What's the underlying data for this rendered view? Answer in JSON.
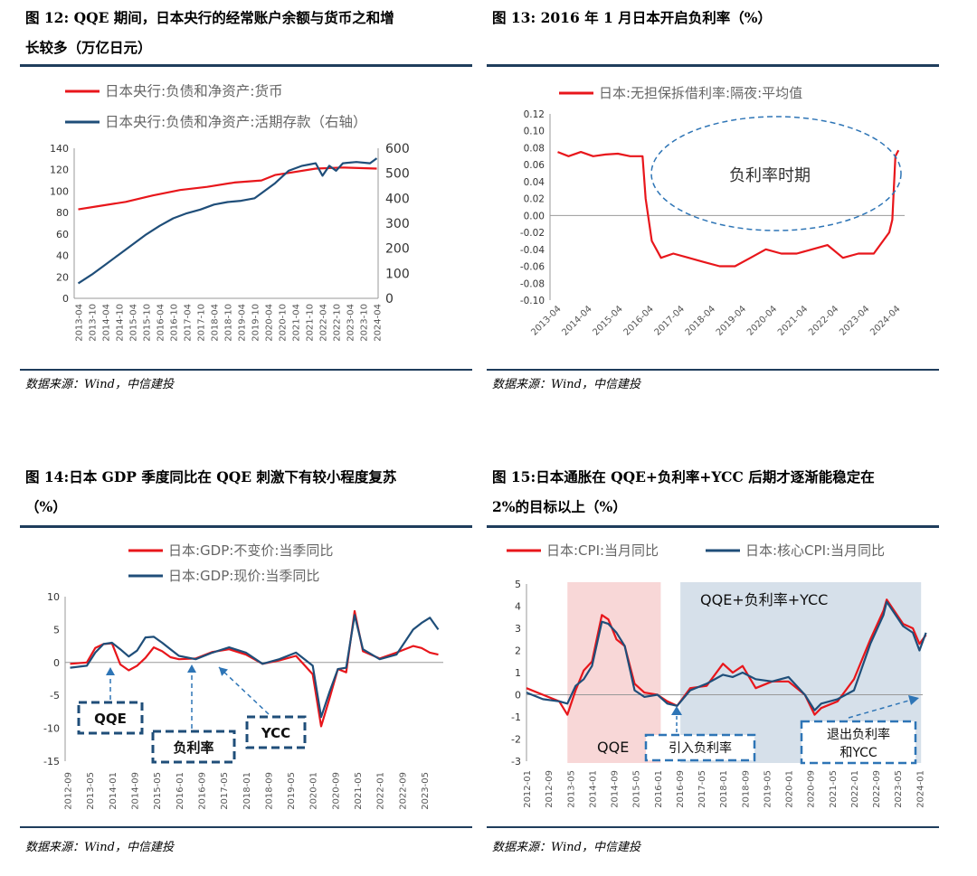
{
  "fig12": {
    "title_line1": "图 12: QQE 期间，日本央行的经常账户余额与货币之和增",
    "title_line2": "长较多（万亿日元）",
    "source": "数据来源：Wind，中信建投",
    "chart_data": {
      "type": "line",
      "legend": [
        "日本央行:负债和净资产:货币",
        "日本央行:负债和净资产:活期存款（右轴）"
      ],
      "x_ticks": [
        "2013-04",
        "2013-10",
        "2014-04",
        "2014-10",
        "2015-04",
        "2015-10",
        "2016-04",
        "2016-10",
        "2017-04",
        "2017-10",
        "2018-04",
        "2018-10",
        "2019-04",
        "2019-10",
        "2020-04",
        "2020-10",
        "2021-04",
        "2021-10",
        "2022-04",
        "2022-10",
        "2023-04",
        "2023-10",
        "2024-04"
      ],
      "y_left_ticks": [
        "0",
        "20",
        "40",
        "60",
        "80",
        "100",
        "120",
        "140"
      ],
      "y_right_ticks": [
        "0",
        "100",
        "200",
        "300",
        "400",
        "500",
        "600"
      ],
      "ylim_left": [
        0,
        140
      ],
      "ylim_right": [
        0,
        600
      ],
      "series": [
        {
          "name": "日本央行:负债和净资产:货币",
          "axis": "left",
          "color": "#e8161b",
          "x": [
            2013.25,
            2014.0,
            2015.0,
            2016.0,
            2017.0,
            2018.0,
            2019.0,
            2020.0,
            2020.5,
            2021.0,
            2022.0,
            2023.0,
            2024.25
          ],
          "y": [
            83,
            86,
            90,
            96,
            101,
            104,
            108,
            110,
            115,
            117,
            121,
            122,
            121
          ]
        },
        {
          "name": "日本央行:负债和净资产:活期存款（右轴）",
          "axis": "right",
          "color": "#1f4e79",
          "x": [
            2013.25,
            2013.75,
            2014.25,
            2014.75,
            2015.25,
            2015.75,
            2016.25,
            2016.75,
            2017.25,
            2017.75,
            2018.25,
            2018.75,
            2019.25,
            2019.75,
            2020.25,
            2020.5,
            2020.75,
            2021.0,
            2021.5,
            2021.75,
            2022.0,
            2022.25,
            2022.5,
            2022.75,
            2023.0,
            2023.5,
            2024.0,
            2024.25
          ],
          "y": [
            60,
            95,
            135,
            175,
            215,
            255,
            290,
            320,
            340,
            355,
            375,
            385,
            390,
            400,
            440,
            460,
            485,
            510,
            530,
            535,
            540,
            490,
            530,
            510,
            540,
            545,
            540,
            560
          ]
        }
      ]
    }
  },
  "fig13": {
    "title": "图 13: 2016 年 1 月日本开启负利率（%）",
    "source": "数据来源：Wind，中信建投",
    "annotation": "负利率时期",
    "chart_data": {
      "type": "line",
      "legend": [
        "日本:无担保拆借利率:隔夜:平均值"
      ],
      "x_ticks": [
        "2013-04",
        "2014-04",
        "2015-04",
        "2016-04",
        "2017-04",
        "2018-04",
        "2019-04",
        "2020-04",
        "2021-04",
        "2022-04",
        "2023-04",
        "2024-04"
      ],
      "y_ticks": [
        "0.12",
        "0.10",
        "0.08",
        "0.06",
        "0.04",
        "0.02",
        "0.00",
        "-0.02",
        "-0.04",
        "-0.06",
        "-0.08",
        "-0.10"
      ],
      "ylim": [
        -0.1,
        0.12
      ],
      "series": [
        {
          "name": "日本:无担保拆借利率:隔夜:平均值",
          "color": "#e8161b",
          "x": [
            2013.25,
            2013.6,
            2014.0,
            2014.4,
            2014.8,
            2015.2,
            2015.6,
            2016.0,
            2016.1,
            2016.3,
            2016.6,
            2017.0,
            2017.5,
            2018.0,
            2018.5,
            2019.0,
            2019.5,
            2020.0,
            2020.5,
            2021.0,
            2021.5,
            2022.0,
            2022.5,
            2023.0,
            2023.5,
            2024.0,
            2024.1,
            2024.2,
            2024.3
          ],
          "y": [
            0.075,
            0.07,
            0.075,
            0.07,
            0.072,
            0.073,
            0.07,
            0.07,
            0.02,
            -0.03,
            -0.05,
            -0.045,
            -0.05,
            -0.055,
            -0.06,
            -0.06,
            -0.05,
            -0.04,
            -0.045,
            -0.045,
            -0.04,
            -0.035,
            -0.05,
            -0.045,
            -0.045,
            -0.02,
            -0.005,
            0.07,
            0.077
          ]
        }
      ]
    }
  },
  "fig14": {
    "title_line1": "图 14:日本 GDP 季度同比在 QQE 刺激下有较小程度复苏",
    "title_line2": "（%）",
    "source": "数据来源：Wind，中信建投",
    "annotations": [
      "QQE",
      "负利率",
      "YCC"
    ],
    "chart_data": {
      "type": "line",
      "legend": [
        "日本:GDP:不变价:当季同比",
        "日本:GDP:现价:当季同比"
      ],
      "x_ticks": [
        "2012-09",
        "2013-05",
        "2014-01",
        "2014-09",
        "2015-05",
        "2016-01",
        "2016-09",
        "2017-05",
        "2018-01",
        "2018-09",
        "2019-05",
        "2020-01",
        "2020-09",
        "2021-05",
        "2022-01",
        "2022-09",
        "2023-05"
      ],
      "y_ticks": [
        "10",
        "5",
        "0",
        "-5",
        "-10",
        "-15"
      ],
      "ylim": [
        -15,
        10
      ],
      "series": [
        {
          "name": "日本:GDP:不变价:当季同比",
          "color": "#e8161b",
          "x": [
            2012.75,
            2013.25,
            2013.5,
            2013.75,
            2014.0,
            2014.25,
            2014.5,
            2014.75,
            2015.0,
            2015.25,
            2015.5,
            2015.75,
            2016.0,
            2016.5,
            2017.0,
            2017.5,
            2018.0,
            2018.5,
            2019.0,
            2019.5,
            2020.0,
            2020.25,
            2020.5,
            2020.75,
            2021.0,
            2021.25,
            2021.5,
            2022.0,
            2022.5,
            2023.0,
            2023.25,
            2023.5,
            2023.75
          ],
          "y": [
            -0.2,
            0.0,
            2.2,
            2.8,
            2.9,
            -0.3,
            -1.2,
            -0.5,
            0.7,
            2.3,
            1.7,
            0.8,
            0.5,
            0.6,
            1.6,
            2.0,
            1.2,
            -0.2,
            0.3,
            1.0,
            -1.8,
            -9.7,
            -5.5,
            -1.0,
            -1.5,
            7.8,
            1.7,
            0.6,
            1.5,
            2.5,
            2.2,
            1.5,
            1.2
          ]
        },
        {
          "name": "日本:GDP:现价:当季同比",
          "color": "#1f4e79",
          "x": [
            2012.75,
            2013.25,
            2013.5,
            2013.75,
            2014.0,
            2014.25,
            2014.5,
            2014.75,
            2015.0,
            2015.25,
            2015.5,
            2015.75,
            2016.0,
            2016.5,
            2017.0,
            2017.5,
            2018.0,
            2018.5,
            2019.0,
            2019.5,
            2020.0,
            2020.25,
            2020.5,
            2020.75,
            2021.0,
            2021.25,
            2021.5,
            2022.0,
            2022.5,
            2023.0,
            2023.25,
            2023.5,
            2023.75
          ],
          "y": [
            -0.8,
            -0.5,
            1.5,
            2.8,
            3.0,
            2.0,
            0.9,
            1.8,
            3.8,
            3.9,
            3.0,
            2.0,
            1.0,
            0.5,
            1.5,
            2.3,
            1.5,
            -0.2,
            0.5,
            1.5,
            -0.5,
            -8.3,
            -4.5,
            -1.0,
            -0.8,
            7.2,
            2.0,
            0.5,
            1.2,
            5.0,
            6.0,
            6.8,
            5.0
          ]
        }
      ]
    }
  },
  "fig15": {
    "title_line1": "图 15:日本通胀在 QQE+负利率+YCC 后期才逐渐能稳定在",
    "title_line2": "2%的目标以上（%）",
    "source": "数据来源：Wind，中信建投",
    "annotations": [
      "QQE+负利率+YCC",
      "QQE",
      "引入负利率",
      "退出负利率",
      "和YCC"
    ],
    "chart_data": {
      "type": "line",
      "legend": [
        "日本:CPI:当月同比",
        "日本:核心CPI:当月同比"
      ],
      "x_ticks": [
        "2012-01",
        "2012-09",
        "2013-05",
        "2014-01",
        "2014-09",
        "2015-05",
        "2016-01",
        "2016-09",
        "2017-05",
        "2018-01",
        "2018-09",
        "2019-05",
        "2020-01",
        "2020-09",
        "2021-05",
        "2022-01",
        "2022-09",
        "2023-05",
        "2024-01"
      ],
      "y_ticks": [
        "5",
        "4",
        "3",
        "2",
        "1",
        "0",
        "-1",
        "-2",
        "-3"
      ],
      "ylim": [
        -3,
        5
      ],
      "series": [
        {
          "name": "日本:CPI:当月同比",
          "color": "#e8161b",
          "x": [
            2012.0,
            2012.5,
            2013.0,
            2013.25,
            2013.5,
            2013.75,
            2014.0,
            2014.3,
            2014.5,
            2014.75,
            2015.0,
            2015.3,
            2015.6,
            2016.0,
            2016.3,
            2016.6,
            2017.0,
            2017.5,
            2018.0,
            2018.3,
            2018.6,
            2019.0,
            2019.5,
            2020.0,
            2020.5,
            2020.8,
            2021.0,
            2021.5,
            2022.0,
            2022.5,
            2022.9,
            2023.0,
            2023.5,
            2023.8,
            2024.0,
            2024.2
          ],
          "y": [
            0.3,
            0.0,
            -0.3,
            -0.9,
            0.2,
            1.1,
            1.5,
            3.6,
            3.4,
            2.5,
            2.2,
            0.5,
            0.1,
            0.0,
            -0.3,
            -0.5,
            0.3,
            0.4,
            1.4,
            1.0,
            1.3,
            0.3,
            0.6,
            0.6,
            0.0,
            -0.9,
            -0.6,
            -0.3,
            0.7,
            2.5,
            3.8,
            4.3,
            3.2,
            3.0,
            2.3,
            2.7
          ]
        },
        {
          "name": "日本:核心CPI:当月同比",
          "color": "#1f4e79",
          "x": [
            2012.0,
            2012.5,
            2013.0,
            2013.25,
            2013.5,
            2013.75,
            2014.0,
            2014.3,
            2014.5,
            2014.75,
            2015.0,
            2015.3,
            2015.6,
            2016.0,
            2016.3,
            2016.6,
            2017.0,
            2017.5,
            2018.0,
            2018.3,
            2018.6,
            2019.0,
            2019.5,
            2020.0,
            2020.5,
            2020.8,
            2021.0,
            2021.5,
            2022.0,
            2022.5,
            2022.9,
            2023.0,
            2023.5,
            2023.8,
            2024.0,
            2024.2
          ],
          "y": [
            0.1,
            -0.2,
            -0.3,
            -0.4,
            0.4,
            0.7,
            1.3,
            3.3,
            3.2,
            2.8,
            2.2,
            0.2,
            -0.1,
            0.0,
            -0.4,
            -0.5,
            0.2,
            0.5,
            0.9,
            0.8,
            1.0,
            0.7,
            0.6,
            0.8,
            0.0,
            -0.7,
            -0.4,
            -0.2,
            0.2,
            2.3,
            3.6,
            4.2,
            3.1,
            2.8,
            2.0,
            2.8
          ]
        }
      ]
    }
  }
}
